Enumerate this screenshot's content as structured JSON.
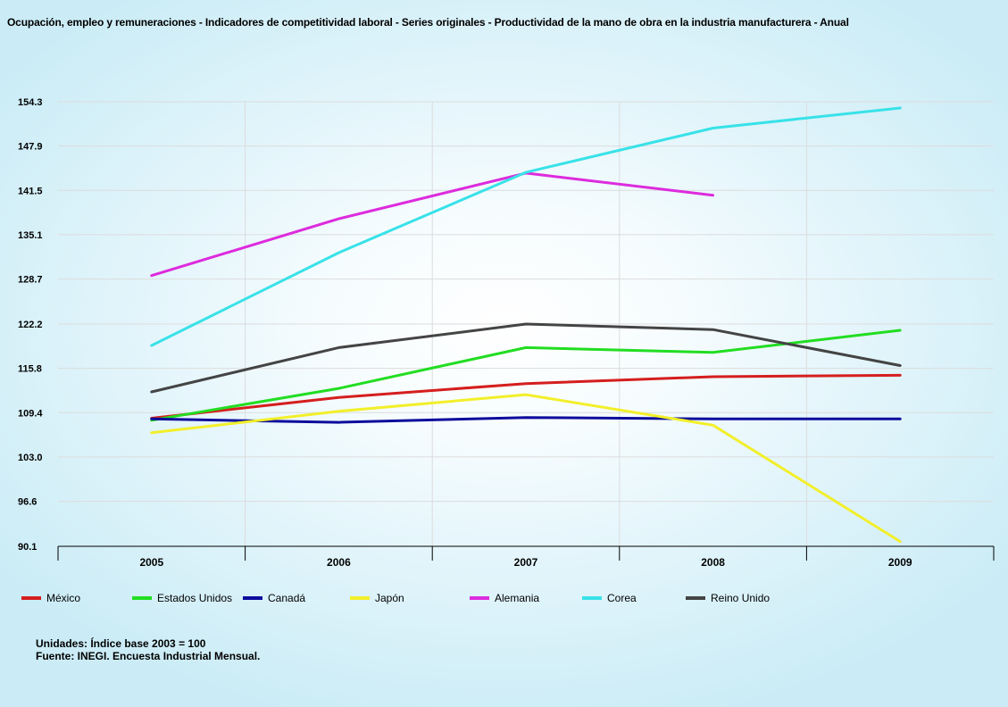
{
  "title": "Ocupación, empleo y remuneraciones - Indicadores de competitividad laboral - Series originales - Productividad de la mano de obra en la industria manufacturera - Anual",
  "units_note": "Unidades: Índice base 2003 = 100",
  "source_note": "Fuente: INEGI. Encuesta Industrial Mensual.",
  "chart_data": {
    "type": "line",
    "title": "Ocupación, empleo y remuneraciones - Indicadores de competitividad laboral - Series originales - Productividad de la mano de obra en la industria manufacturera - Anual",
    "xlabel": "",
    "ylabel": "",
    "categories": [
      "2005",
      "2006",
      "2007",
      "2008",
      "2009"
    ],
    "y_ticks": [
      "154.3",
      "147.9",
      "141.5",
      "135.1",
      "128.7",
      "122.2",
      "115.8",
      "109.4",
      "103.0",
      "96.6",
      "90.1"
    ],
    "ylim": [
      90.1,
      154.3
    ],
    "grid": true,
    "legend_position": "bottom",
    "series": [
      {
        "name": "México",
        "color": "#d51e1e",
        "values": [
          108.6,
          111.6,
          113.6,
          114.6,
          114.8
        ]
      },
      {
        "name": "Estados Unidos",
        "color": "#22dd22",
        "values": [
          108.3,
          112.9,
          118.8,
          118.1,
          121.3
        ]
      },
      {
        "name": "Canadá",
        "color": "#0c0c9c",
        "values": [
          108.5,
          108.0,
          108.7,
          108.5,
          108.5
        ]
      },
      {
        "name": "Japón",
        "color": "#f2ef2a",
        "values": [
          106.5,
          109.6,
          112.0,
          107.6,
          90.8
        ]
      },
      {
        "name": "Alemania",
        "color": "#dd2bdd",
        "values": [
          129.2,
          137.4,
          144.0,
          140.8,
          null
        ]
      },
      {
        "name": "Corea",
        "color": "#38e2e8",
        "values": [
          119.1,
          132.5,
          144.1,
          150.5,
          153.4
        ]
      },
      {
        "name": "Reino Unido",
        "color": "#444444",
        "values": [
          112.4,
          118.8,
          122.2,
          121.4,
          116.2
        ]
      }
    ]
  }
}
